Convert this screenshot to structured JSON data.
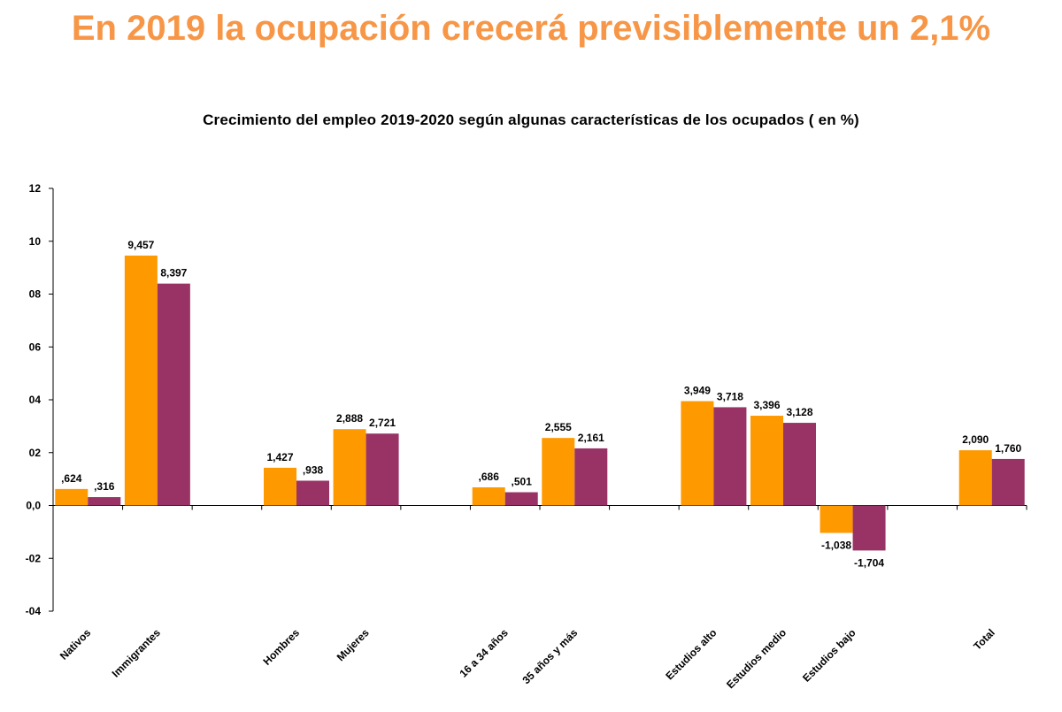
{
  "header": {
    "title": "En 2019 la ocupación crecerá previsiblemente un 2,1%"
  },
  "colors": {
    "title": "#f79646",
    "series_1": "#ff9900",
    "series_2": "#993366"
  },
  "chart_data": {
    "type": "bar",
    "title": "Crecimiento del empleo 2019-2020 según algunas características de los ocupados ( en %)",
    "xlabel": "",
    "ylabel": "",
    "ylim": [
      -4,
      12
    ],
    "yticks": [
      12,
      10,
      8,
      6,
      4,
      2,
      0,
      -2,
      -4
    ],
    "ytick_labels": [
      "12",
      "10",
      "08",
      "06",
      "04",
      "02",
      "0,0",
      "-02",
      "-04"
    ],
    "grid": false,
    "legend": "none",
    "categories": [
      "Nativos",
      "Immigrantes",
      "",
      "Hombres",
      "Mujeres",
      "",
      "16 a 34 años",
      "35 años y más",
      "",
      "Estudios alto",
      "Estudios medio",
      "Estudios bajo",
      "",
      "Total"
    ],
    "series": [
      {
        "values": [
          0.624,
          9.457,
          null,
          1.427,
          2.888,
          null,
          0.686,
          2.555,
          null,
          3.949,
          3.396,
          -1.038,
          null,
          2.09
        ],
        "labels": [
          ",624",
          "9,457",
          "",
          "1,427",
          "2,888",
          "",
          ",686",
          "2,555",
          "",
          "3,949",
          "3,396",
          "-1,038",
          "",
          "2,090"
        ]
      },
      {
        "values": [
          0.316,
          8.397,
          null,
          0.938,
          2.721,
          null,
          0.501,
          2.161,
          null,
          3.718,
          3.128,
          -1.704,
          null,
          1.76
        ],
        "labels": [
          ",316",
          "8,397",
          "",
          ",938",
          "2,721",
          "",
          ",501",
          "2,161",
          "",
          "3,718",
          "3,128",
          "-1,704",
          "",
          "1,760"
        ]
      }
    ]
  }
}
